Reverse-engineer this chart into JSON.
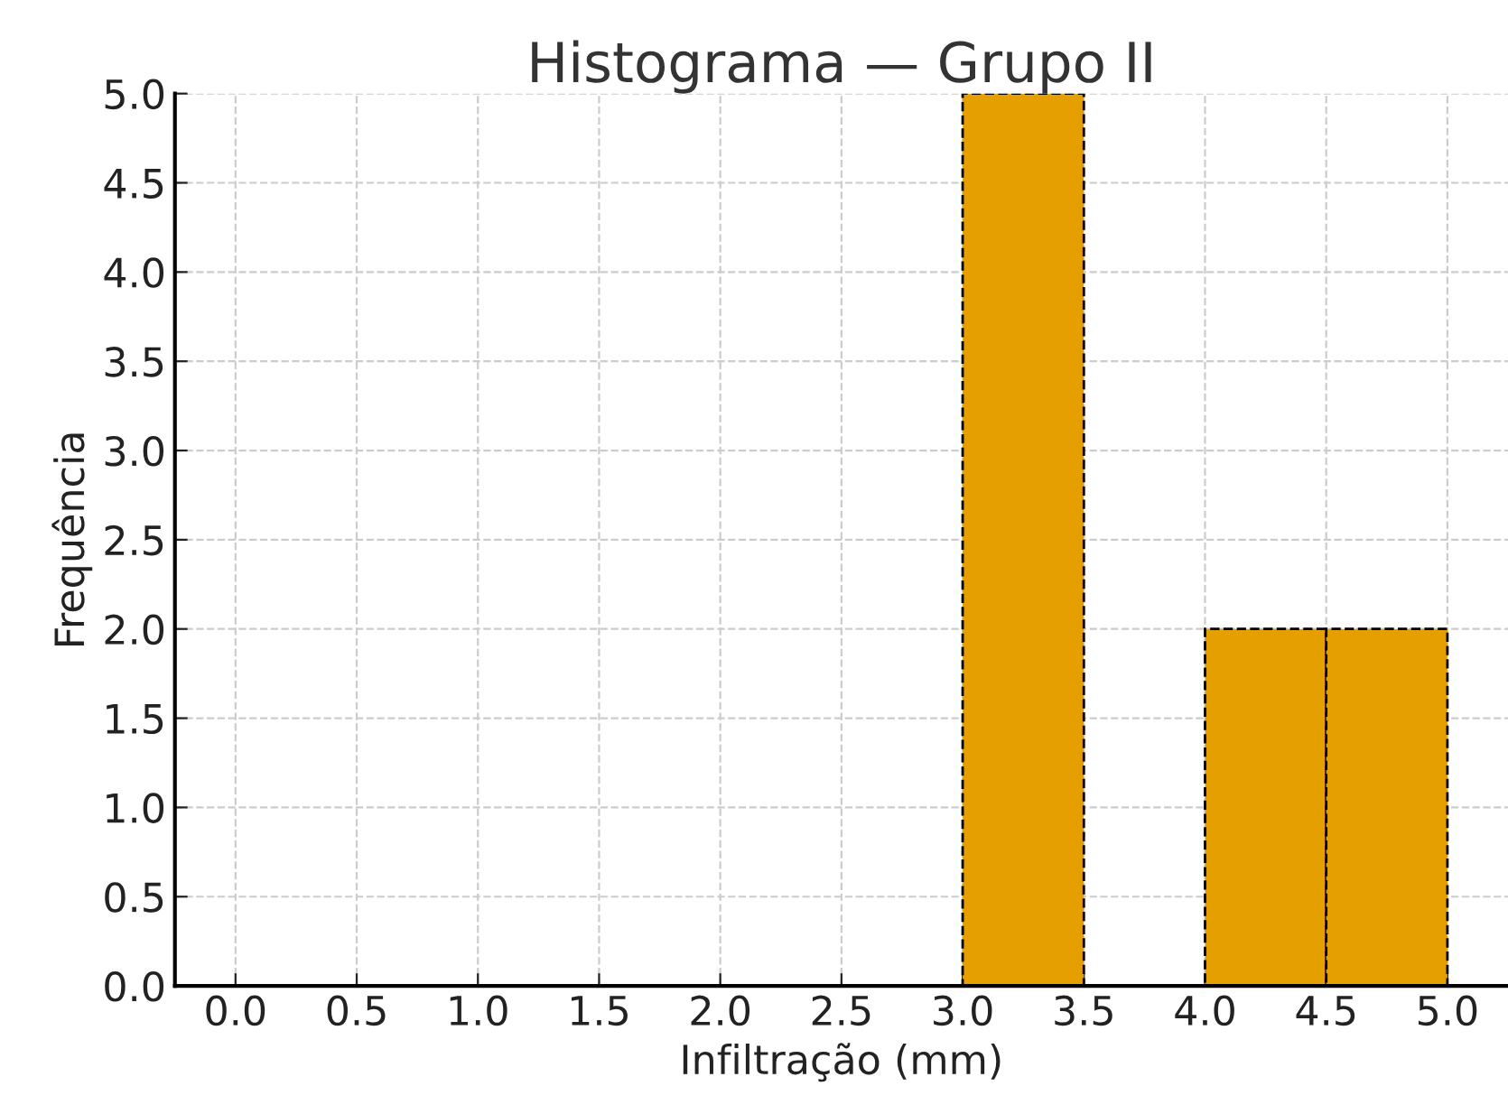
{
  "chart_data": {
    "type": "histogram",
    "title": "Histograma — Grupo II",
    "xlabel": "Infiltração (mm)",
    "ylabel": "Frequência",
    "bins": [
      0.0,
      0.5,
      1.0,
      1.5,
      2.0,
      2.5,
      3.0,
      3.5,
      4.0,
      4.5,
      5.0
    ],
    "values": [
      0,
      0,
      0,
      0,
      0,
      0,
      5,
      0,
      2,
      2
    ],
    "color": "#e69f00",
    "xlim": [
      -0.25,
      5.25
    ],
    "xticks": [
      {
        "value": 0,
        "label": "0.0"
      },
      0.5,
      {
        "value": 1,
        "label": "1.0"
      },
      1.5,
      {
        "value": 2,
        "label": "2.0"
      },
      2.5,
      {
        "value": 3,
        "label": "3.0"
      },
      3.5,
      {
        "value": 4,
        "label": "4.0"
      },
      4.5,
      {
        "value": 5,
        "label": "5.0"
      }
    ],
    "ylim": [
      0,
      5
    ],
    "yticks": [
      {
        "value": 0,
        "label": "0.0"
      },
      0.5,
      {
        "value": 1,
        "label": "1.0"
      },
      1.5,
      {
        "value": 2,
        "label": "2.0"
      },
      2.5,
      {
        "value": 3,
        "label": "3.0"
      },
      3.5,
      {
        "value": 4,
        "label": "4.0"
      },
      4.5,
      {
        "value": 5,
        "label": "5.0"
      }
    ],
    "grid": true
  }
}
